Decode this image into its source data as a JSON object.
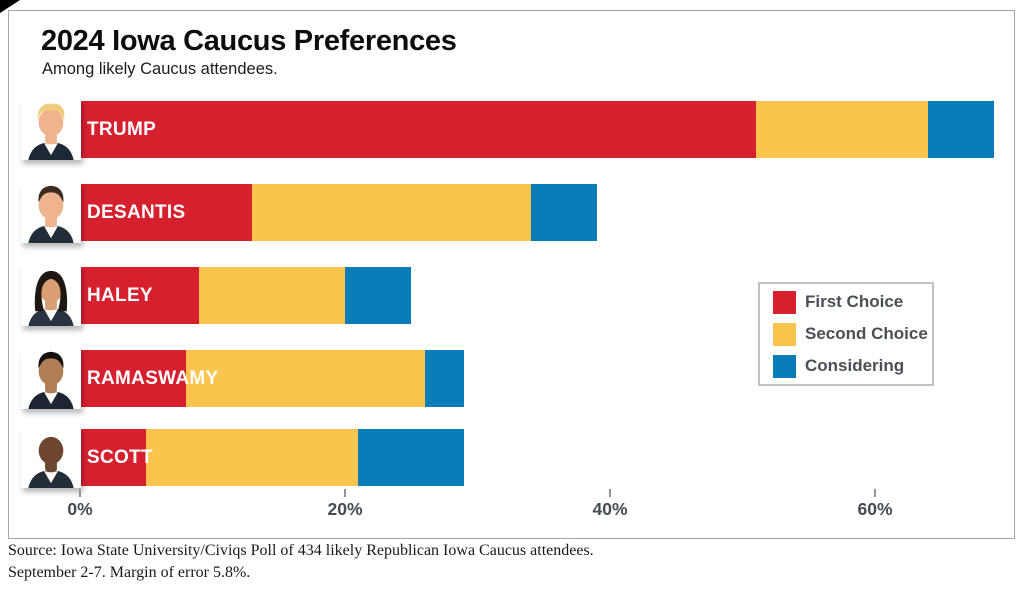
{
  "header": {
    "title": "2024 Iowa Caucus Preferences",
    "subtitle": "Among likely Caucus attendees."
  },
  "chart_data": {
    "type": "bar",
    "stacked": true,
    "orientation": "horizontal",
    "title": "2024 Iowa Caucus Preferences",
    "subtitle": "Among likely Caucus attendees.",
    "categories": [
      "TRUMP",
      "DESANTIS",
      "HALEY",
      "RAMASWAMY",
      "SCOTT"
    ],
    "series": [
      {
        "name": "First Choice",
        "color": "#D7202E",
        "values": [
          51,
          13,
          9,
          8,
          5
        ]
      },
      {
        "name": "Second Choice",
        "color": "#FBC44D",
        "values": [
          13,
          21,
          11,
          18,
          16
        ]
      },
      {
        "name": "Considering",
        "color": "#0A7DB8",
        "values": [
          5,
          5,
          5,
          3,
          8
        ]
      }
    ],
    "x_axis": {
      "tick_labels": [
        "0%",
        "20%",
        "40%",
        "60%"
      ],
      "tick_values": [
        0,
        20,
        40,
        60
      ],
      "max": 70,
      "grid": false
    },
    "legend": {
      "position": "right-middle",
      "items": [
        "First Choice",
        "Second Choice",
        "Considering"
      ]
    }
  },
  "candidates": [
    {
      "label": "TRUMP",
      "avatar": "trump-headshot-icon",
      "hair_style": "sweep",
      "hair": "#EFCC7F",
      "skin": "#F1B38C",
      "suit": "#1D2836"
    },
    {
      "label": "DESANTIS",
      "avatar": "desantis-headshot-icon",
      "hair_style": "short",
      "hair": "#3B2B20",
      "skin": "#EFB48E",
      "suit": "#222D3A"
    },
    {
      "label": "HALEY",
      "avatar": "haley-headshot-icon",
      "hair_style": "long",
      "hair": "#1F1712",
      "skin": "#D99E73",
      "suit": "#2A3340"
    },
    {
      "label": "RAMASWAMY",
      "avatar": "ramaswamy-headshot-icon",
      "hair_style": "short",
      "hair": "#15110E",
      "skin": "#B07D55",
      "suit": "#1C2531"
    },
    {
      "label": "SCOTT",
      "avatar": "scott-headshot-icon",
      "hair_style": "bald",
      "hair": "none",
      "skin": "#6E452E",
      "suit": "#232D38"
    }
  ],
  "footer": {
    "source_line1": "Source: Iowa State University/Civiqs Poll of 434 likely Republican Iowa Caucus attendees.",
    "source_line2": "September 2-7. Margin of error 5.8%."
  }
}
